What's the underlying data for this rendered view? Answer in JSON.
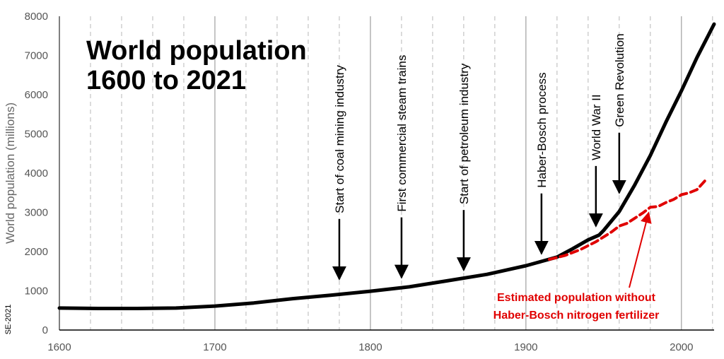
{
  "chart_data": {
    "type": "line",
    "title_lines": [
      "World population",
      "1600 to 2021"
    ],
    "xlabel": "",
    "ylabel": "World population (millions)",
    "xlim": [
      1600,
      2021
    ],
    "ylim": [
      0,
      8000
    ],
    "x_ticks": [
      1600,
      1700,
      1800,
      1900,
      2000
    ],
    "y_ticks": [
      0,
      1000,
      2000,
      3000,
      4000,
      5000,
      6000,
      7000,
      8000
    ],
    "major_gridlines_x": [
      1700,
      1800,
      1900,
      2000
    ],
    "minor_gridlines_x": [
      1620,
      1640,
      1660,
      1680,
      1720,
      1740,
      1760,
      1780,
      1820,
      1840,
      1860,
      1880,
      1920,
      1940,
      1960,
      1980,
      2020
    ],
    "series": [
      {
        "color": "#000000",
        "style": "solid",
        "points": [
          [
            1600,
            560
          ],
          [
            1625,
            550
          ],
          [
            1650,
            550
          ],
          [
            1675,
            560
          ],
          [
            1700,
            610
          ],
          [
            1725,
            690
          ],
          [
            1750,
            800
          ],
          [
            1775,
            890
          ],
          [
            1800,
            990
          ],
          [
            1825,
            1100
          ],
          [
            1850,
            1260
          ],
          [
            1875,
            1420
          ],
          [
            1900,
            1640
          ],
          [
            1910,
            1750
          ],
          [
            1920,
            1860
          ],
          [
            1930,
            2070
          ],
          [
            1940,
            2300
          ],
          [
            1947,
            2420
          ],
          [
            1950,
            2540
          ],
          [
            1960,
            3020
          ],
          [
            1970,
            3700
          ],
          [
            1980,
            4450
          ],
          [
            1990,
            5300
          ],
          [
            2000,
            6100
          ],
          [
            2010,
            6950
          ],
          [
            2021,
            7800
          ]
        ]
      },
      {
        "color": "#e00000",
        "style": "dashed",
        "points": [
          [
            1915,
            1800
          ],
          [
            1925,
            1900
          ],
          [
            1935,
            2050
          ],
          [
            1945,
            2250
          ],
          [
            1955,
            2500
          ],
          [
            1960,
            2650
          ],
          [
            1965,
            2720
          ],
          [
            1970,
            2850
          ],
          [
            1975,
            2980
          ],
          [
            1980,
            3130
          ],
          [
            1985,
            3150
          ],
          [
            1990,
            3250
          ],
          [
            1995,
            3330
          ],
          [
            2000,
            3450
          ],
          [
            2005,
            3500
          ],
          [
            2010,
            3580
          ],
          [
            2015,
            3800
          ]
        ]
      }
    ],
    "events": [
      {
        "label": "Start of coal mining industry",
        "year": 1780,
        "value": 1300
      },
      {
        "label": "First commercial steam  trains",
        "year": 1820,
        "value": 1340
      },
      {
        "label": "Start of petroleum industry",
        "year": 1860,
        "value": 1530
      },
      {
        "label": "Haber-Bosch process",
        "year": 1910,
        "value": 1950
      },
      {
        "label": "World War II",
        "year": 1945,
        "value": 2650
      },
      {
        "label": "Green Revolution",
        "year": 1960,
        "value": 3500
      }
    ],
    "annotation": {
      "lines": [
        "Estimated population without",
        "Haber-Bosch nitrogen fertilizer"
      ],
      "color": "#e00000",
      "target_year": 1978,
      "target_value": 3100
    },
    "credit": "SE-2021"
  }
}
